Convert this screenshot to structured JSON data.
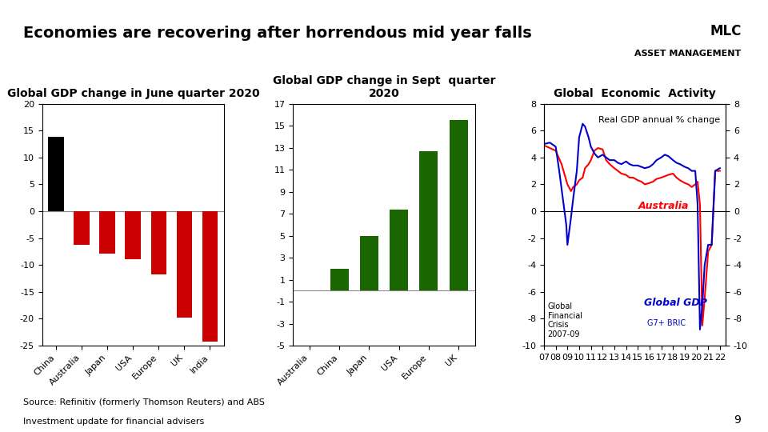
{
  "title": "Economies are recovering after horrendous mid year falls",
  "annotations": [
    "MLC",
    "ASSET MANAGEMENT",
    "Source: Refinitiv (formerly Thomson Reuters) and ABS",
    "Investment update for financial advisers",
    "9"
  ],
  "chart_data": [
    {
      "type": "bar",
      "title": "Global GDP change in June quarter 2020",
      "categories": [
        "China",
        "Australia",
        "Japan",
        "USA",
        "Europe",
        "UK",
        "India"
      ],
      "values": [
        13.8,
        -6.3,
        -7.9,
        -9.0,
        -11.8,
        -19.8,
        -24.2
      ],
      "colors": [
        "#000000",
        "#cc0000",
        "#cc0000",
        "#cc0000",
        "#cc0000",
        "#cc0000",
        "#cc0000"
      ],
      "ylim": [
        -25,
        20
      ],
      "yticks": [
        -25,
        -20,
        -15,
        -10,
        -5,
        0,
        5,
        10,
        15,
        20
      ],
      "grid": false
    },
    {
      "type": "bar",
      "title": "Global GDP change in Sept  quarter\n2020",
      "categories": [
        "Australia",
        "China",
        "Japan",
        "USA",
        "Europe",
        "UK"
      ],
      "values": [
        0.0,
        2.0,
        5.0,
        7.4,
        12.7,
        15.5
      ],
      "color": "#1a6600",
      "ylim": [
        -5,
        17
      ],
      "yticks": [
        -5,
        -3,
        -1,
        1,
        3,
        5,
        7,
        9,
        11,
        13,
        15,
        17
      ],
      "grid": false
    },
    {
      "type": "line",
      "title": "Global  Economic  Activity",
      "annotations": [
        "Real GDP annual % change",
        "Global\nFinancial\nCrisis\n2007-09",
        "G7+ BRIC"
      ],
      "xlim": [
        2007,
        2022.5
      ],
      "xticks": [
        {
          "value": 2007,
          "label": "07"
        },
        {
          "value": 2008,
          "label": "08"
        },
        {
          "value": 2009,
          "label": "09"
        },
        {
          "value": 2010,
          "label": "10"
        },
        {
          "value": 2011,
          "label": "11"
        },
        {
          "value": 2012,
          "label": "12"
        },
        {
          "value": 2013,
          "label": "13"
        },
        {
          "value": 2014,
          "label": "14"
        },
        {
          "value": 2015,
          "label": "15"
        },
        {
          "value": 2016,
          "label": "16"
        },
        {
          "value": 2017,
          "label": "17"
        },
        {
          "value": 2018,
          "label": "18"
        },
        {
          "value": 2019,
          "label": "19"
        },
        {
          "value": 2020,
          "label": "20"
        },
        {
          "value": 2021,
          "label": "21"
        },
        {
          "value": 2022,
          "label": "22"
        }
      ],
      "ylim": [
        -10,
        8
      ],
      "yticks": [
        -10,
        -8,
        -6,
        -4,
        -2,
        0,
        2,
        4,
        6,
        8
      ],
      "y2lim": [
        -10,
        8
      ],
      "y2ticks": [
        -10,
        -8,
        -6,
        -4,
        -2,
        0,
        2,
        4,
        6,
        8
      ],
      "grid": false,
      "series": [
        {
          "name": "Australia",
          "color": "#ff0000",
          "x": [
            2007,
            2007.5,
            2008,
            2008.5,
            2009,
            2009.3,
            2009.5,
            2009.8,
            2010,
            2010.3,
            2010.5,
            2010.8,
            2011,
            2011.3,
            2011.6,
            2012,
            2012.3,
            2012.6,
            2013,
            2013.3,
            2013.6,
            2014,
            2014.3,
            2014.6,
            2015,
            2015.3,
            2015.6,
            2016,
            2016.3,
            2016.6,
            2017,
            2017.3,
            2017.6,
            2018,
            2018.3,
            2018.6,
            2019,
            2019.3,
            2019.6,
            2019.9,
            2020.1,
            2020.3,
            2020.5,
            2020.7,
            2021,
            2021.3,
            2021.6,
            2022
          ],
          "values": [
            4.9,
            4.7,
            4.5,
            3.5,
            2.0,
            1.5,
            1.8,
            2.0,
            2.3,
            2.5,
            3.2,
            3.5,
            3.8,
            4.5,
            4.7,
            4.6,
            3.8,
            3.5,
            3.2,
            3.0,
            2.8,
            2.7,
            2.5,
            2.5,
            2.3,
            2.2,
            2.0,
            2.1,
            2.2,
            2.4,
            2.5,
            2.6,
            2.7,
            2.8,
            2.5,
            2.3,
            2.1,
            2.0,
            1.8,
            2.0,
            2.2,
            0.5,
            -8.5,
            -6.5,
            -3.0,
            -2.5,
            3.0,
            3.0
          ]
        },
        {
          "name": "Global GDP",
          "color": "#0000cc",
          "x": [
            2007,
            2007.5,
            2008,
            2008.3,
            2008.6,
            2008.9,
            2009,
            2009.3,
            2009.5,
            2009.8,
            2010,
            2010.3,
            2010.5,
            2010.8,
            2011,
            2011.3,
            2011.6,
            2012,
            2012.3,
            2012.6,
            2013,
            2013.3,
            2013.6,
            2014,
            2014.3,
            2014.6,
            2015,
            2015.3,
            2015.6,
            2016,
            2016.3,
            2016.6,
            2017,
            2017.3,
            2017.6,
            2018,
            2018.3,
            2018.6,
            2019,
            2019.3,
            2019.6,
            2019.9,
            2020.1,
            2020.3,
            2020.5,
            2020.7,
            2021,
            2021.3,
            2021.6,
            2022
          ],
          "values": [
            5.0,
            5.1,
            4.8,
            3.0,
            1.0,
            -1.0,
            -2.5,
            -0.5,
            1.0,
            3.0,
            5.5,
            6.5,
            6.3,
            5.5,
            4.8,
            4.3,
            4.0,
            4.2,
            4.0,
            3.8,
            3.8,
            3.6,
            3.5,
            3.7,
            3.5,
            3.4,
            3.4,
            3.3,
            3.2,
            3.3,
            3.5,
            3.8,
            4.0,
            4.2,
            4.1,
            3.8,
            3.6,
            3.5,
            3.3,
            3.2,
            3.0,
            3.0,
            0.5,
            -8.8,
            -7.0,
            -4.0,
            -2.5,
            -2.5,
            3.0,
            3.2
          ]
        }
      ]
    }
  ]
}
